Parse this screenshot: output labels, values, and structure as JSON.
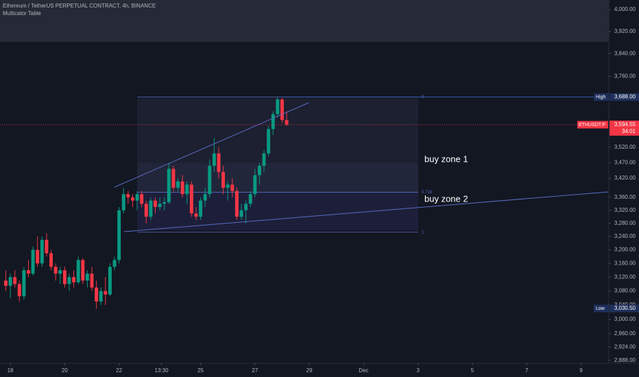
{
  "chart_data": {
    "type": "candlestick",
    "title": "Ethereum / TetherUS PERPETUAL CONTRACT, 4h, BINANCE",
    "indicator": "Multicator Table",
    "log_scale": true,
    "up_color": "#089981",
    "down_color": "#f23645",
    "x": [
      17.833,
      18,
      18.167,
      18.333,
      18.5,
      18.667,
      18.833,
      19,
      19.167,
      19.333,
      19.5,
      19.667,
      19.833,
      20,
      20.167,
      20.333,
      20.5,
      20.667,
      20.833,
      21,
      21.167,
      21.333,
      21.5,
      21.667,
      21.833,
      22,
      22.167,
      22.333,
      22.5,
      22.667,
      22.833,
      23,
      23.167,
      23.333,
      23.5,
      23.667,
      23.833,
      24,
      24.167,
      24.333,
      24.5,
      24.667,
      24.833,
      25,
      25.167,
      25.333,
      25.5,
      25.667,
      25.833,
      26,
      26.167,
      26.333,
      26.5,
      26.667,
      26.833,
      27,
      27.167,
      27.333,
      27.5,
      27.667,
      27.833,
      28,
      28.167
    ],
    "open": [
      3110,
      3095,
      3120,
      3100,
      3065,
      3140,
      3130,
      3200,
      3160,
      3230,
      3190,
      3150,
      3130,
      3140,
      3100,
      3120,
      3105,
      3170,
      3110,
      3130,
      3090,
      3050,
      3080,
      3070,
      3150,
      3170,
      3320,
      3370,
      3360,
      3350,
      3370,
      3340,
      3300,
      3350,
      3330,
      3340,
      3345,
      3450,
      3390,
      3410,
      3370,
      3400,
      3310,
      3300,
      3350,
      3370,
      3460,
      3500,
      3440,
      3390,
      3400,
      3380,
      3300,
      3320,
      3340,
      3370,
      3430,
      3460,
      3500,
      3580,
      3630,
      3680,
      3610
    ],
    "high": [
      3140,
      3130,
      3140,
      3110,
      3150,
      3170,
      3210,
      3240,
      3240,
      3250,
      3200,
      3160,
      3150,
      3150,
      3130,
      3140,
      3180,
      3175,
      3140,
      3150,
      3110,
      3090,
      3120,
      3160,
      3180,
      3330,
      3390,
      3380,
      3370,
      3380,
      3380,
      3350,
      3360,
      3360,
      3360,
      3360,
      3470,
      3460,
      3420,
      3430,
      3410,
      3410,
      3330,
      3360,
      3390,
      3480,
      3550,
      3520,
      3460,
      3410,
      3420,
      3390,
      3340,
      3350,
      3380,
      3450,
      3470,
      3510,
      3590,
      3640,
      3688,
      3685,
      3640
    ],
    "low": [
      3080,
      3060,
      3090,
      3050,
      3055,
      3120,
      3125,
      3150,
      3150,
      3180,
      3140,
      3110,
      3100,
      3090,
      3080,
      3090,
      3100,
      3100,
      3090,
      3080,
      3030,
      3040,
      3040,
      3065,
      3140,
      3160,
      3310,
      3340,
      3330,
      3320,
      3330,
      3280,
      3290,
      3310,
      3320,
      3320,
      3340,
      3380,
      3380,
      3360,
      3340,
      3300,
      3290,
      3290,
      3330,
      3360,
      3440,
      3420,
      3370,
      3350,
      3360,
      3290,
      3290,
      3280,
      3330,
      3360,
      3400,
      3440,
      3490,
      3560,
      3620,
      3600,
      3590
    ],
    "close": [
      3095,
      3120,
      3100,
      3065,
      3140,
      3130,
      3200,
      3160,
      3230,
      3190,
      3150,
      3130,
      3140,
      3100,
      3120,
      3105,
      3170,
      3110,
      3130,
      3090,
      3050,
      3080,
      3070,
      3150,
      3170,
      3320,
      3370,
      3360,
      3350,
      3370,
      3340,
      3300,
      3350,
      3330,
      3340,
      3345,
      3450,
      3390,
      3410,
      3370,
      3400,
      3310,
      3300,
      3350,
      3370,
      3460,
      3500,
      3440,
      3390,
      3400,
      3380,
      3300,
      3320,
      3340,
      3370,
      3430,
      3460,
      3500,
      3580,
      3630,
      3680,
      3610,
      3594.55
    ],
    "xlim": [
      17.62,
      40.02
    ],
    "xticks": [
      18,
      20,
      22,
      {
        "value": 23.5625,
        "label": "13:30"
      },
      25,
      27,
      29,
      {
        "value": 31,
        "label": "Dec"
      },
      {
        "value": 33,
        "label": "3"
      },
      {
        "value": 35,
        "label": "5"
      },
      {
        "value": 37,
        "label": "7"
      },
      {
        "value": 39,
        "label": "9"
      }
    ],
    "ylim": [
      2880,
      4036
    ],
    "yticks": [
      {
        "value": 4000,
        "label": "4,000.00"
      },
      {
        "value": 3920,
        "label": "3,920.00"
      },
      {
        "value": 3840,
        "label": "3,840.00"
      },
      {
        "value": 3760,
        "label": "3,760.00"
      },
      {
        "value": 3520,
        "label": "3,520.00"
      },
      {
        "value": 3470,
        "label": "3,470.00"
      },
      {
        "value": 3420,
        "label": "3,420.00"
      },
      {
        "value": 3360,
        "label": "3,360.00"
      },
      {
        "value": 3320,
        "label": "3,320.00"
      },
      {
        "value": 3280,
        "label": "3,280.00"
      },
      {
        "value": 3240,
        "label": "3,240.00"
      },
      {
        "value": 3200,
        "label": "3,200.00"
      },
      {
        "value": 3160,
        "label": "3,160.00"
      },
      {
        "value": 3120,
        "label": "3,120.00"
      },
      {
        "value": 3080,
        "label": "3,080.00"
      },
      {
        "value": 3040,
        "label": "3,040.00"
      },
      {
        "value": 3000,
        "label": "3,000.00"
      },
      {
        "value": 2960,
        "label": "2,960.00"
      },
      {
        "value": 2924,
        "label": "2,924.00"
      },
      {
        "value": 2888,
        "label": "2,888.00"
      }
    ],
    "fib_levels": [
      {
        "value": 3688,
        "label": "0"
      },
      {
        "value": 3376,
        "label": "0.718"
      },
      {
        "value": 3253,
        "label": "1"
      }
    ],
    "markers": [
      {
        "label": "High",
        "value": 3688,
        "value_label": "3,688.00",
        "color": "#1e2f5c"
      },
      {
        "label": "ETHUSDT.P",
        "value": 3594.55,
        "value_label": "3,594.55",
        "countdown": "34:01",
        "color": "#f23645"
      },
      {
        "label": "Low",
        "value": 3030.5,
        "value_label": "3,030.50",
        "color": "#1e2f5c"
      }
    ],
    "annotations": [
      "buy zone 1",
      "buy zone 2"
    ]
  }
}
